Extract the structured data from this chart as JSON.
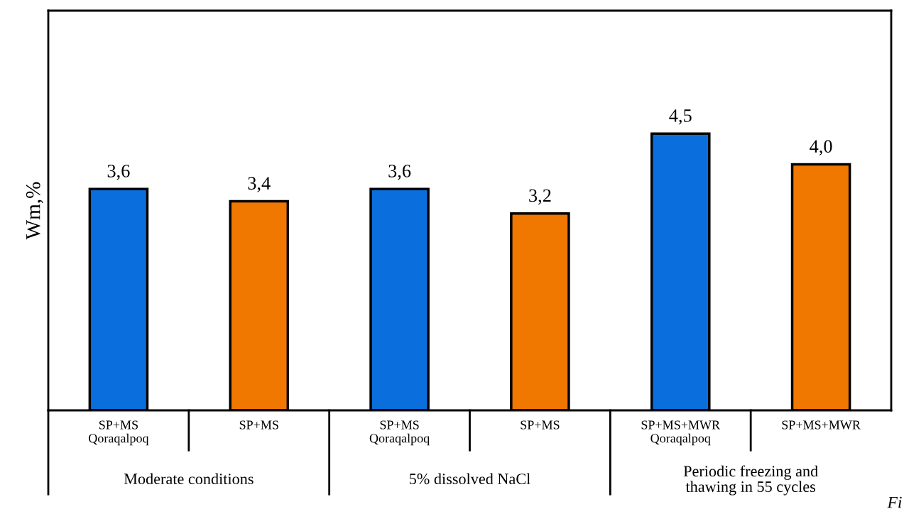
{
  "chart_data": {
    "type": "bar",
    "ylabel": "Wm,%",
    "categories": [
      "SP+MS\nQoraqalpoq",
      "SP+MS",
      "SP+MS\nQoraqalpoq",
      "SP+MS",
      "SP+MS+MWR\nQoraqalpoq",
      "SP+MS+MWR"
    ],
    "values": [
      3.6,
      3.4,
      3.6,
      3.2,
      4.5,
      4.0
    ],
    "value_labels": [
      "3,6",
      "3,4",
      "3,6",
      "3,2",
      "4,5",
      "4,0"
    ],
    "colors": [
      "#0a6fdc",
      "#f07800",
      "#0a6fdc",
      "#f07800",
      "#0a6fdc",
      "#f07800"
    ],
    "ylim": [
      0,
      6.5
    ],
    "tick_labels": "x",
    "grid": false,
    "legend": false,
    "annotations": [
      "Moderate conditions",
      "5% dissolved NaCl",
      "Periodic freezing and\nthawing in 55 cycles",
      "Fi"
    ]
  }
}
